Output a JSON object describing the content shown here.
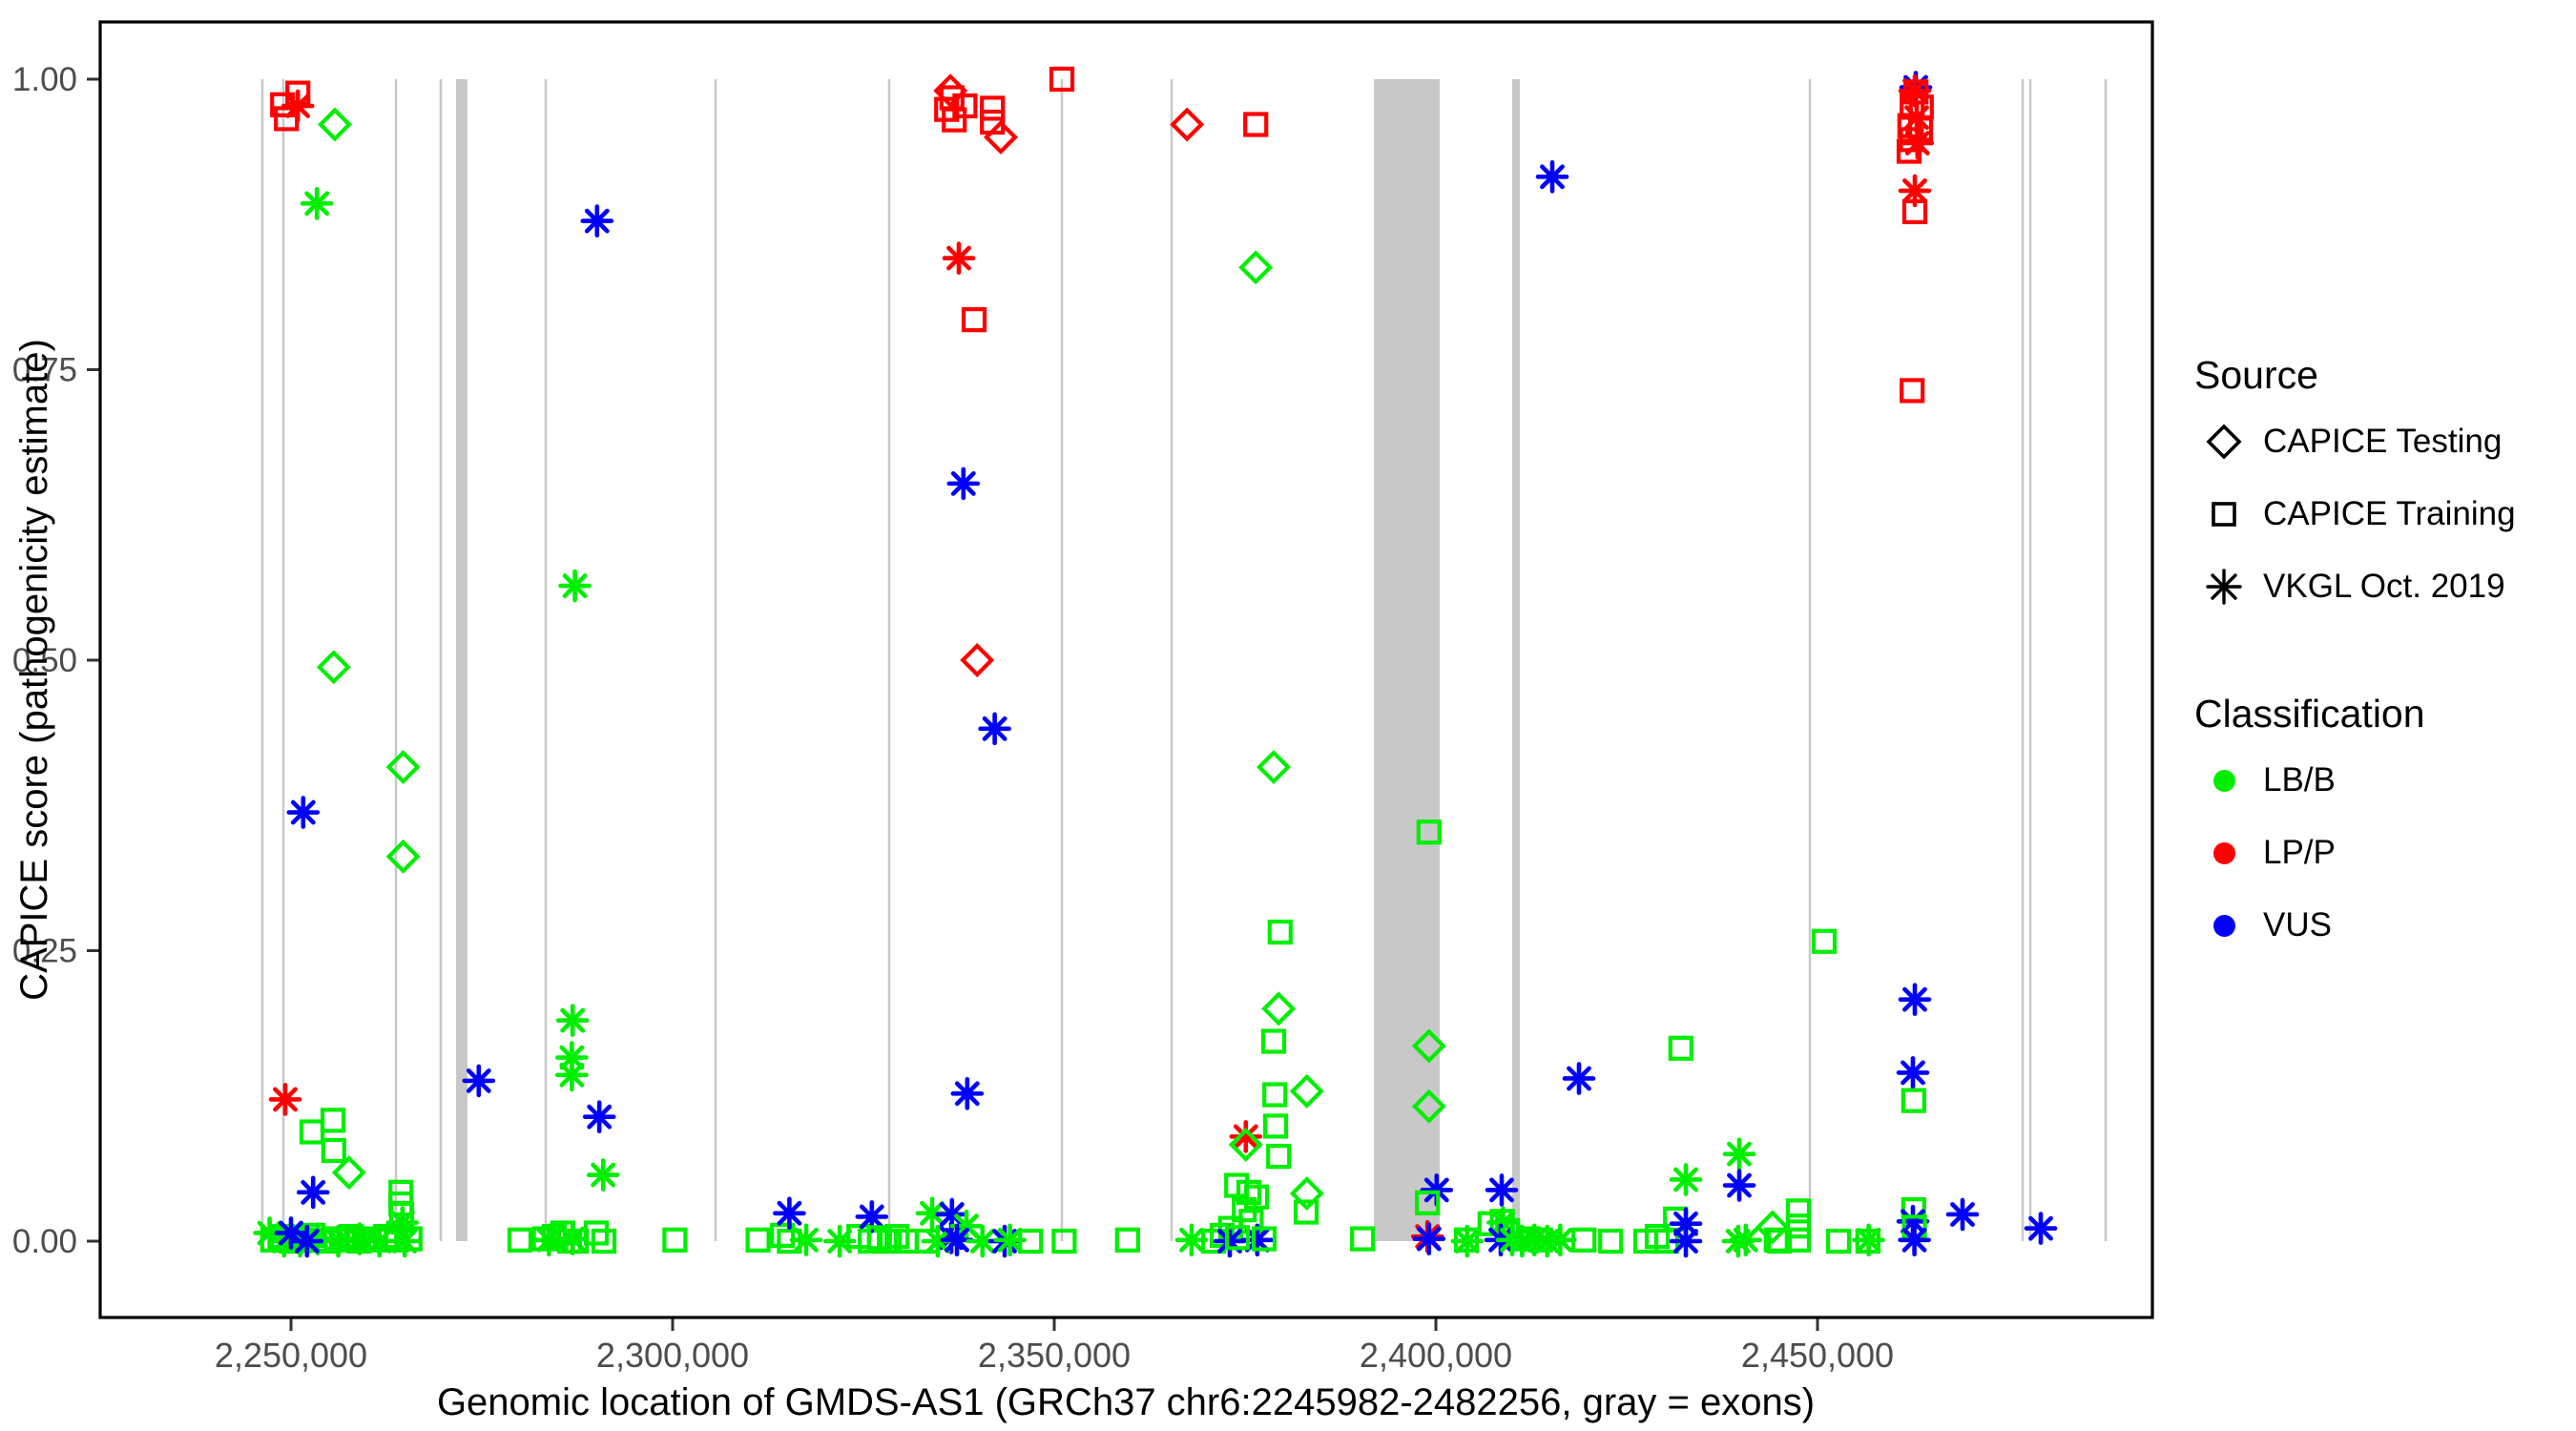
{
  "colors": {
    "LB": "#00ee00",
    "LP": "#ff0000",
    "VUS": "#0000ff",
    "exon": "#c8c8c8",
    "panel_border": "#000000",
    "tick_mark": "#333333",
    "tick_text": "#4d4d4d"
  },
  "legend": {
    "source": {
      "title": "Source",
      "items": [
        {
          "label": "CAPICE Testing",
          "shape": "diamond"
        },
        {
          "label": "CAPICE Training",
          "shape": "square"
        },
        {
          "label": "VKGL Oct. 2019",
          "shape": "asterisk"
        }
      ]
    },
    "classification": {
      "title": "Classification",
      "items": [
        {
          "label": "LB/B",
          "color": "#00ee00"
        },
        {
          "label": "LP/P",
          "color": "#ff0000"
        },
        {
          "label": "VUS",
          "color": "#0000ff"
        }
      ]
    }
  },
  "chart_data": {
    "type": "scatter",
    "title": "",
    "xlabel": "Genomic location of GMDS-AS1 (GRCh37 chr6:2245982-2482256, gray = exons)",
    "ylabel": "CAPICE score (pathogenicity estimate)",
    "x_tick_values": [
      2250000,
      2300000,
      2350000,
      2400000,
      2450000
    ],
    "x_tick_labels": [
      "2,250,000",
      "2,300,000",
      "2,350,000",
      "2,400,000",
      "2,450,000"
    ],
    "y_tick_values": [
      1.0,
      0.75,
      0.5,
      0.25,
      0.0
    ],
    "y_tick_labels": [
      "1.00",
      "0.75",
      "0.50",
      "0.25",
      "0.00"
    ],
    "x_domain": [
      2225000,
      2493875
    ],
    "y_domain": [
      0,
      1
    ],
    "grid": "off",
    "legend_position": "right",
    "exons_note": "gray = exons",
    "exons_thin": [
      2246250,
      2249000,
      2263750,
      2269625,
      2283375,
      2305625,
      2328375,
      2351000,
      2365375,
      2449000,
      2476875,
      2477875,
      2487750
    ],
    "exons_wide": [
      [
        2271625,
        2273125
      ],
      [
        2391875,
        2400500
      ],
      [
        2410000,
        2411000
      ]
    ],
    "points": [
      [
        2250900,
        0.988,
        "sq",
        "LP"
      ],
      [
        2248900,
        0.978,
        "sq",
        "LP"
      ],
      [
        2250900,
        0.977,
        "as",
        "LP"
      ],
      [
        2249400,
        0.966,
        "sq",
        "LP"
      ],
      [
        2255750,
        0.961,
        "di",
        "LB"
      ],
      [
        2253400,
        0.893,
        "as",
        "LB"
      ],
      [
        2251600,
        0.369,
        "as",
        "VUS"
      ],
      [
        2249250,
        0.122,
        "as",
        "LP"
      ],
      [
        2255600,
        0.494,
        "di",
        "LB"
      ],
      [
        2264700,
        0.408,
        "di",
        "LB"
      ],
      [
        2264700,
        0.331,
        "di",
        "LB"
      ],
      [
        2255500,
        0.104,
        "sq",
        "LB"
      ],
      [
        2252750,
        0.094,
        "sq",
        "LB"
      ],
      [
        2255600,
        0.078,
        "sq",
        "LB"
      ],
      [
        2257600,
        0.059,
        "di",
        "LB"
      ],
      [
        2252900,
        0.042,
        "as",
        "VUS"
      ],
      [
        2264400,
        0.042,
        "sq",
        "LB"
      ],
      [
        2264400,
        0.032,
        "sq",
        "LB"
      ],
      [
        2264500,
        0.023,
        "sq",
        "LB"
      ],
      [
        2264600,
        0.016,
        "as",
        "LB"
      ],
      [
        2247600,
        0.001,
        "sq",
        "LB"
      ],
      [
        2248900,
        0.004,
        "sq",
        "LB"
      ],
      [
        2250000,
        0.0,
        "sq",
        "LB"
      ],
      [
        2250900,
        0.002,
        "sq",
        "LB"
      ],
      [
        2251900,
        0.001,
        "sq",
        "LB"
      ],
      [
        2252900,
        0.005,
        "sq",
        "LB"
      ],
      [
        2253900,
        0.001,
        "sq",
        "LB"
      ],
      [
        2254900,
        0.0,
        "sq",
        "LB"
      ],
      [
        2255900,
        0.002,
        "sq",
        "LB"
      ],
      [
        2256900,
        0.001,
        "sq",
        "LB"
      ],
      [
        2257900,
        0.004,
        "sq",
        "LB"
      ],
      [
        2258900,
        0.0,
        "sq",
        "LB"
      ],
      [
        2259900,
        0.002,
        "sq",
        "LB"
      ],
      [
        2261100,
        0.001,
        "sq",
        "LB"
      ],
      [
        2262400,
        0.004,
        "sq",
        "LB"
      ],
      [
        2263800,
        0.001,
        "sq",
        "LB"
      ],
      [
        2265600,
        0.002,
        "sq",
        "LB"
      ],
      [
        2247200,
        0.007,
        "as",
        "LB"
      ],
      [
        2249100,
        0.0,
        "as",
        "LB"
      ],
      [
        2251200,
        0.0,
        "as",
        "LB"
      ],
      [
        2253500,
        0.002,
        "as",
        "LB"
      ],
      [
        2256200,
        0.0,
        "as",
        "LB"
      ],
      [
        2259000,
        0.002,
        "as",
        "LB"
      ],
      [
        2261600,
        0.0,
        "as",
        "LB"
      ],
      [
        2264900,
        0.0,
        "as",
        "LB"
      ],
      [
        2250000,
        0.007,
        "as",
        "VUS"
      ],
      [
        2252100,
        0.0,
        "as",
        "VUS"
      ],
      [
        2274600,
        0.138,
        "as",
        "VUS"
      ],
      [
        2280000,
        0.001,
        "sq",
        "LB"
      ],
      [
        2283200,
        0.002,
        "sq",
        "LB"
      ],
      [
        2283800,
        0.001,
        "as",
        "LB"
      ],
      [
        2284500,
        0.004,
        "sq",
        "LB"
      ],
      [
        2285600,
        0.007,
        "sq",
        "LB"
      ],
      [
        2286500,
        0.0,
        "sq",
        "LB"
      ],
      [
        2286900,
        0.002,
        "as",
        "LB"
      ],
      [
        2287400,
        0.0,
        "sq",
        "LB"
      ],
      [
        2290000,
        0.007,
        "sq",
        "LB"
      ],
      [
        2291000,
        0.0,
        "sq",
        "LB"
      ],
      [
        2300300,
        0.001,
        "sq",
        "LB"
      ],
      [
        2287200,
        0.564,
        "as",
        "LB"
      ],
      [
        2290100,
        0.878,
        "as",
        "VUS"
      ],
      [
        2286900,
        0.19,
        "as",
        "LB"
      ],
      [
        2286800,
        0.158,
        "as",
        "LB"
      ],
      [
        2286800,
        0.143,
        "as",
        "LB"
      ],
      [
        2290400,
        0.107,
        "as",
        "VUS"
      ],
      [
        2290900,
        0.057,
        "as",
        "LB"
      ],
      [
        2311200,
        0.001,
        "sq",
        "LB"
      ],
      [
        2314400,
        0.005,
        "sq",
        "LB"
      ],
      [
        2315300,
        0.0,
        "sq",
        "LB"
      ],
      [
        2315300,
        0.024,
        "as",
        "VUS"
      ],
      [
        2317500,
        0.001,
        "as",
        "LB"
      ],
      [
        2321900,
        0.0,
        "as",
        "LB"
      ],
      [
        2324400,
        0.004,
        "sq",
        "LB"
      ],
      [
        2325900,
        0.0,
        "sq",
        "LB"
      ],
      [
        2326100,
        0.021,
        "as",
        "VUS"
      ],
      [
        2327100,
        0.003,
        "sq",
        "LB"
      ],
      [
        2328400,
        0.0,
        "sq",
        "LB"
      ],
      [
        2329400,
        0.004,
        "sq",
        "LB"
      ],
      [
        2330600,
        0.0,
        "sq",
        "LB"
      ],
      [
        2334000,
        0.024,
        "as",
        "LB"
      ],
      [
        2336600,
        0.023,
        "as",
        "VUS"
      ],
      [
        2336500,
        0.003,
        "as",
        "VUS"
      ],
      [
        2338500,
        0.013,
        "as",
        "LB"
      ],
      [
        2333400,
        0.0,
        "sq",
        "LB"
      ],
      [
        2334750,
        0.0,
        "as",
        "LB"
      ],
      [
        2337250,
        0.001,
        "as",
        "VUS"
      ],
      [
        2340600,
        0.0,
        "as",
        "LB"
      ],
      [
        2343500,
        0.0,
        "as",
        "VUS"
      ],
      [
        2344200,
        0.001,
        "as",
        "LB"
      ],
      [
        2346900,
        0.0,
        "sq",
        "LB"
      ],
      [
        2351300,
        0.0,
        "sq",
        "LB"
      ],
      [
        2336400,
        0.99,
        "di",
        "LP"
      ],
      [
        2336600,
        0.984,
        "sq",
        "LP"
      ],
      [
        2335900,
        0.974,
        "sq",
        "LP"
      ],
      [
        2338300,
        0.977,
        "sq",
        "LP"
      ],
      [
        2336900,
        0.965,
        "sq",
        "LP"
      ],
      [
        2341900,
        0.975,
        "sq",
        "LP"
      ],
      [
        2341900,
        0.963,
        "sq",
        "LP"
      ],
      [
        2343000,
        0.95,
        "di",
        "LP"
      ],
      [
        2351000,
        1.0,
        "sq",
        "LP"
      ],
      [
        2337500,
        0.846,
        "as",
        "LP"
      ],
      [
        2339500,
        0.793,
        "sq",
        "LP"
      ],
      [
        2338100,
        0.652,
        "as",
        "VUS"
      ],
      [
        2339900,
        0.5,
        "di",
        "LP"
      ],
      [
        2342200,
        0.441,
        "as",
        "VUS"
      ],
      [
        2338600,
        0.127,
        "as",
        "VUS"
      ],
      [
        2359600,
        0.001,
        "sq",
        "LB"
      ],
      [
        2367400,
        0.961,
        "di",
        "LP"
      ],
      [
        2376400,
        0.961,
        "sq",
        "LP"
      ],
      [
        2376400,
        0.838,
        "di",
        "LB"
      ],
      [
        2378750,
        0.408,
        "di",
        "LB"
      ],
      [
        2379600,
        0.266,
        "sq",
        "LB"
      ],
      [
        2379400,
        0.2,
        "di",
        "LB"
      ],
      [
        2378750,
        0.172,
        "sq",
        "LB"
      ],
      [
        2383100,
        0.129,
        "di",
        "LB"
      ],
      [
        2378900,
        0.126,
        "sq",
        "LB"
      ],
      [
        2379000,
        0.099,
        "sq",
        "LB"
      ],
      [
        2375100,
        0.09,
        "as",
        "LP"
      ],
      [
        2375100,
        0.083,
        "di",
        "LB"
      ],
      [
        2379400,
        0.073,
        "sq",
        "LB"
      ],
      [
        2373900,
        0.048,
        "sq",
        "LB"
      ],
      [
        2375500,
        0.042,
        "sq",
        "LB"
      ],
      [
        2383100,
        0.041,
        "di",
        "LB"
      ],
      [
        2376500,
        0.038,
        "sq",
        "LB"
      ],
      [
        2374900,
        0.027,
        "sq",
        "LB"
      ],
      [
        2383000,
        0.025,
        "sq",
        "LB"
      ],
      [
        2375800,
        0.017,
        "sq",
        "LB"
      ],
      [
        2373100,
        0.011,
        "sq",
        "LB"
      ],
      [
        2372000,
        0.005,
        "sq",
        "LB"
      ],
      [
        2368000,
        0.001,
        "as",
        "LB"
      ],
      [
        2370900,
        0.0,
        "sq",
        "LB"
      ],
      [
        2373000,
        0.0,
        "as",
        "VUS"
      ],
      [
        2376600,
        0.001,
        "as",
        "VUS"
      ],
      [
        2374000,
        0.003,
        "sq",
        "LB"
      ],
      [
        2377500,
        0.002,
        "sq",
        "LB"
      ],
      [
        2390400,
        0.002,
        "sq",
        "LB"
      ],
      [
        2399100,
        0.352,
        "sq",
        "LB"
      ],
      [
        2399100,
        0.168,
        "di",
        "LB"
      ],
      [
        2399100,
        0.116,
        "di",
        "LB"
      ],
      [
        2400100,
        0.044,
        "as",
        "VUS"
      ],
      [
        2398900,
        0.033,
        "sq",
        "LB"
      ],
      [
        2398900,
        0.004,
        "as",
        "LP"
      ],
      [
        2399100,
        0.002,
        "as",
        "VUS"
      ],
      [
        2404000,
        0.001,
        "sq",
        "LB"
      ],
      [
        2404100,
        0.0,
        "as",
        "LB"
      ],
      [
        2407100,
        0.015,
        "sq",
        "LB"
      ],
      [
        2408700,
        0.017,
        "sq",
        "LB"
      ],
      [
        2408800,
        0.016,
        "as",
        "LB"
      ],
      [
        2409400,
        0.009,
        "sq",
        "LB"
      ],
      [
        2408500,
        0.001,
        "as",
        "VUS"
      ],
      [
        2408625,
        0.044,
        "as",
        "VUS"
      ],
      [
        2410000,
        0.001,
        "as",
        "LB"
      ],
      [
        2411300,
        0.0,
        "as",
        "LB"
      ],
      [
        2412900,
        0.001,
        "as",
        "LB"
      ],
      [
        2414600,
        0.0,
        "as",
        "LB"
      ],
      [
        2416300,
        0.001,
        "as",
        "LB"
      ],
      [
        2412100,
        0.002,
        "sq",
        "LB"
      ],
      [
        2413700,
        0.001,
        "sq",
        "LB"
      ],
      [
        2415250,
        0.916,
        "as",
        "VUS"
      ],
      [
        2418750,
        0.14,
        "as",
        "VUS"
      ],
      [
        2419400,
        0.001,
        "sq",
        "LB"
      ],
      [
        2422900,
        0.0,
        "sq",
        "LB"
      ],
      [
        2432100,
        0.166,
        "sq",
        "LB"
      ],
      [
        2427500,
        0.0,
        "sq",
        "LB"
      ],
      [
        2429000,
        0.004,
        "sq",
        "LB"
      ],
      [
        2430250,
        0.0,
        "sq",
        "LB"
      ],
      [
        2431400,
        0.019,
        "sq",
        "LB"
      ],
      [
        2432750,
        0.015,
        "as",
        "VUS"
      ],
      [
        2432750,
        0.0,
        "as",
        "VUS"
      ],
      [
        2432750,
        0.053,
        "as",
        "LB"
      ],
      [
        2439750,
        0.075,
        "as",
        "LB"
      ],
      [
        2439750,
        0.048,
        "as",
        "VUS"
      ],
      [
        2439600,
        0.0,
        "as",
        "LB"
      ],
      [
        2440600,
        0.001,
        "as",
        "LB"
      ],
      [
        2444100,
        0.012,
        "di",
        "LB"
      ],
      [
        2444600,
        0.001,
        "sq",
        "LB"
      ],
      [
        2445000,
        0.0,
        "sq",
        "LB"
      ],
      [
        2447500,
        0.026,
        "sq",
        "LB"
      ],
      [
        2447500,
        0.013,
        "sq",
        "LB"
      ],
      [
        2447500,
        0.001,
        "sq",
        "LB"
      ],
      [
        2450875,
        0.258,
        "sq",
        "LB"
      ],
      [
        2452750,
        0.0,
        "sq",
        "LB"
      ],
      [
        2456600,
        0.0,
        "sq",
        "LB"
      ],
      [
        2456700,
        0.001,
        "as",
        "LB"
      ],
      [
        2462875,
        0.993,
        "as",
        "VUS"
      ],
      [
        2462750,
        0.99,
        "as",
        "LP"
      ],
      [
        2462900,
        0.989,
        "sq",
        "LP"
      ],
      [
        2462400,
        0.978,
        "sq",
        "LP"
      ],
      [
        2463600,
        0.976,
        "sq",
        "LP"
      ],
      [
        2463000,
        0.967,
        "as",
        "LP"
      ],
      [
        2462100,
        0.96,
        "sq",
        "LP"
      ],
      [
        2463500,
        0.957,
        "sq",
        "LP"
      ],
      [
        2462300,
        0.948,
        "sq",
        "LP"
      ],
      [
        2463100,
        0.945,
        "as",
        "LP"
      ],
      [
        2462000,
        0.938,
        "sq",
        "LP"
      ],
      [
        2462750,
        0.904,
        "as",
        "LP"
      ],
      [
        2462750,
        0.886,
        "sq",
        "LP"
      ],
      [
        2462400,
        0.732,
        "sq",
        "LP"
      ],
      [
        2462750,
        0.208,
        "as",
        "VUS"
      ],
      [
        2462500,
        0.145,
        "as",
        "VUS"
      ],
      [
        2462600,
        0.121,
        "sq",
        "LB"
      ],
      [
        2462600,
        0.027,
        "sq",
        "LB"
      ],
      [
        2462500,
        0.017,
        "as",
        "VUS"
      ],
      [
        2462700,
        0.012,
        "sq",
        "LB"
      ],
      [
        2462700,
        0.001,
        "as",
        "VUS"
      ],
      [
        2469000,
        0.023,
        "as",
        "VUS"
      ],
      [
        2479250,
        0.011,
        "as",
        "VUS"
      ]
    ]
  }
}
